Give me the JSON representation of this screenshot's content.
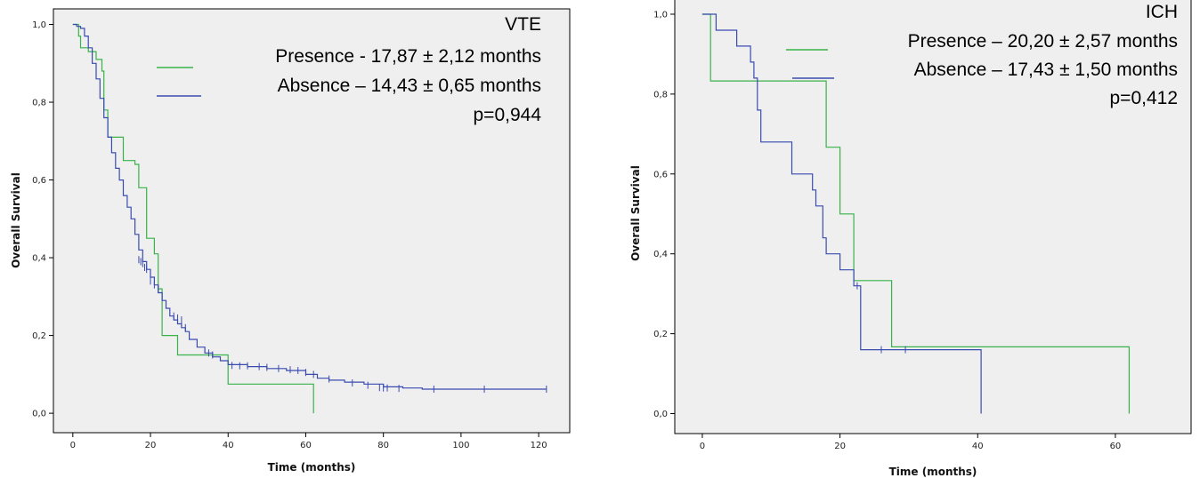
{
  "colors": {
    "presence": "#38b34a",
    "absence": "#3a4bb0",
    "plot_bg": "#efefef"
  },
  "chart_data": [
    {
      "type": "line",
      "title": "VTE",
      "xlabel": "Time (months)",
      "ylabel": "Overall Survival",
      "xlim": [
        -5,
        128
      ],
      "ylim": [
        -0.05,
        1.04
      ],
      "xticks": [
        0,
        20,
        40,
        60,
        80,
        100,
        120
      ],
      "xtick_labels": [
        "0",
        "20",
        "40",
        "60",
        "80",
        "100",
        "120"
      ],
      "yticks": [
        0,
        0.2,
        0.4,
        0.6,
        0.8,
        1.0
      ],
      "ytick_labels": [
        "0,0",
        "0,2",
        "0,4",
        "0,6",
        "0,8",
        "1,0"
      ],
      "legend_placement": "top-right",
      "legend": [
        "Presence - 17,87 ± 2,12 months",
        "Absence – 14,43 ± 0,65 months"
      ],
      "pvalue": "p=0,944",
      "series": [
        {
          "name": "Presence - 17,87 ± 2,12 months",
          "color_key": "presence",
          "x": [
            0,
            1.5,
            2,
            4,
            6,
            7.5,
            8,
            9,
            10,
            12,
            13,
            16,
            17,
            19,
            21,
            22,
            23,
            24,
            27,
            28,
            40,
            62,
            62
          ],
          "y": [
            1.0,
            0.97,
            0.94,
            0.93,
            0.91,
            0.88,
            0.78,
            0.71,
            0.71,
            0.71,
            0.65,
            0.64,
            0.58,
            0.45,
            0.41,
            0.32,
            0.2,
            0.2,
            0.15,
            0.15,
            0.075,
            0.075,
            0.0
          ],
          "censor_x": [
            22
          ],
          "censor_y": [
            0.32
          ]
        },
        {
          "name": "Absence – 14,43 ± 0,65 months",
          "color_key": "absence",
          "x": [
            0,
            1,
            2,
            3,
            4,
            5,
            6,
            7,
            8,
            9,
            10,
            11,
            12,
            13,
            14,
            15,
            16,
            17,
            18,
            19,
            20,
            21,
            22,
            23,
            24,
            25,
            26,
            27,
            28,
            29,
            30,
            32,
            34,
            36,
            38,
            40,
            45,
            50,
            55,
            60,
            63,
            66,
            70,
            75,
            80,
            85,
            90,
            100,
            110,
            122
          ],
          "y": [
            1.0,
            0.995,
            0.99,
            0.97,
            0.94,
            0.9,
            0.86,
            0.81,
            0.76,
            0.71,
            0.67,
            0.63,
            0.6,
            0.56,
            0.53,
            0.5,
            0.46,
            0.42,
            0.39,
            0.37,
            0.35,
            0.33,
            0.31,
            0.29,
            0.27,
            0.25,
            0.24,
            0.23,
            0.22,
            0.21,
            0.19,
            0.17,
            0.155,
            0.145,
            0.135,
            0.125,
            0.12,
            0.115,
            0.11,
            0.1,
            0.09,
            0.085,
            0.08,
            0.075,
            0.068,
            0.065,
            0.062,
            0.062,
            0.062,
            0.062
          ],
          "censor_x": [
            17,
            17.5,
            18,
            18.5,
            19,
            20,
            21,
            22,
            23,
            26,
            27,
            28,
            29,
            35,
            36,
            41,
            43,
            45,
            48,
            50,
            53,
            56,
            58,
            60,
            62,
            66,
            72,
            76,
            79,
            80,
            81,
            84,
            93,
            106,
            122
          ],
          "censor_y": [
            0.395,
            0.39,
            0.385,
            0.375,
            0.37,
            0.34,
            0.33,
            0.32,
            0.3,
            0.25,
            0.245,
            0.24,
            0.22,
            0.155,
            0.15,
            0.123,
            0.122,
            0.122,
            0.12,
            0.118,
            0.115,
            0.112,
            0.11,
            0.105,
            0.1,
            0.088,
            0.078,
            0.072,
            0.066,
            0.065,
            0.065,
            0.064,
            0.062,
            0.062,
            0.062
          ]
        }
      ]
    },
    {
      "type": "line",
      "title": "ICH",
      "xlabel": "Time (months)",
      "ylabel": "Overall Survival",
      "xlim": [
        -4,
        71
      ],
      "ylim": [
        -0.05,
        1.04
      ],
      "xticks": [
        0,
        20,
        40,
        60
      ],
      "xtick_labels": [
        "0",
        "20",
        "40",
        "60"
      ],
      "yticks": [
        0,
        0.2,
        0.4,
        0.6,
        0.8,
        1.0
      ],
      "ytick_labels": [
        "0,0",
        "0,2",
        "0,4",
        "0,6",
        "0,8",
        "1,0"
      ],
      "legend_placement": "top-right",
      "legend": [
        "Presence – 20,20 ± 2,57 months",
        "Absence – 17,43 ± 1,50 months"
      ],
      "pvalue": "p=0,412",
      "series": [
        {
          "name": "Presence – 20,20 ± 2,57 months",
          "color_key": "presence",
          "x": [
            0,
            1.2,
            1.2,
            18,
            18,
            20,
            20,
            22,
            22,
            27.5,
            27.5,
            62,
            62
          ],
          "y": [
            1.0,
            1.0,
            0.833,
            0.833,
            0.667,
            0.667,
            0.5,
            0.5,
            0.333,
            0.333,
            0.167,
            0.167,
            0.0
          ],
          "censor_x": [],
          "censor_y": []
        },
        {
          "name": "Absence – 17,43 ± 1,50 months",
          "color_key": "absence",
          "x": [
            0,
            2,
            2,
            5,
            5,
            7,
            7,
            7.5,
            7.5,
            8,
            8,
            8.5,
            8.5,
            13,
            13,
            16,
            16,
            16.5,
            16.5,
            17.5,
            17.5,
            18,
            18,
            20,
            20,
            22,
            22,
            23,
            23,
            40.5,
            40.5
          ],
          "y": [
            1.0,
            1.0,
            0.96,
            0.96,
            0.92,
            0.92,
            0.88,
            0.88,
            0.84,
            0.84,
            0.76,
            0.76,
            0.68,
            0.68,
            0.6,
            0.6,
            0.56,
            0.56,
            0.52,
            0.52,
            0.44,
            0.44,
            0.4,
            0.4,
            0.36,
            0.36,
            0.32,
            0.32,
            0.16,
            0.16,
            0.0
          ],
          "censor_x": [
            22.5,
            26,
            29.5
          ],
          "censor_y": [
            0.32,
            0.16,
            0.16
          ]
        }
      ]
    }
  ]
}
